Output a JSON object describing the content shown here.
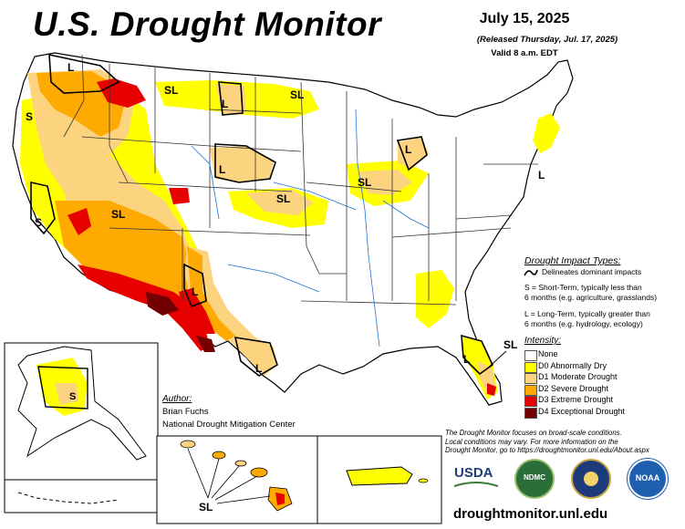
{
  "header": {
    "title": "U.S. Drought Monitor",
    "date": "July 15, 2025",
    "released": "(Released Thursday, Jul. 17, 2025)",
    "valid": "Valid 8 a.m. EDT"
  },
  "legend": {
    "impact_heading": "Drought Impact Types:",
    "delineates": "Delineates dominant impacts",
    "short_term_1": "S = Short-Term, typically less than",
    "short_term_2": "6 months (e.g. agriculture, grasslands)",
    "long_term_1": "L = Long-Term, typically greater than",
    "long_term_2": "6 months (e.g. hydrology, ecology)",
    "intensity_heading": "Intensity:",
    "categories": [
      {
        "label": "None",
        "color": "#ffffff"
      },
      {
        "label": "D0 Abnormally Dry",
        "color": "#ffff00"
      },
      {
        "label": "D1 Moderate Drought",
        "color": "#fcd37f"
      },
      {
        "label": "D2 Severe Drought",
        "color": "#ffaa00"
      },
      {
        "label": "D3 Extreme Drought",
        "color": "#e60000"
      },
      {
        "label": "D4 Exceptional Drought",
        "color": "#730000"
      }
    ]
  },
  "map_labels": {
    "sl": "SL",
    "s": "S",
    "l": "L"
  },
  "author": {
    "heading": "Author:",
    "name": "Brian Fuchs",
    "org": "National Drought Mitigation Center"
  },
  "note": {
    "line1": "The Drought Monitor focuses on broad-scale conditions.",
    "line2": "Local conditions may vary. For more information on the",
    "line3": "Drought Monitor, go to https://droughtmonitor.unl.edu/About.aspx"
  },
  "logos": {
    "usda": "USDA",
    "ndmc": "NDMC",
    "noaa": "NOAA"
  },
  "footer": {
    "url": "droughtmonitor.unl.edu"
  }
}
